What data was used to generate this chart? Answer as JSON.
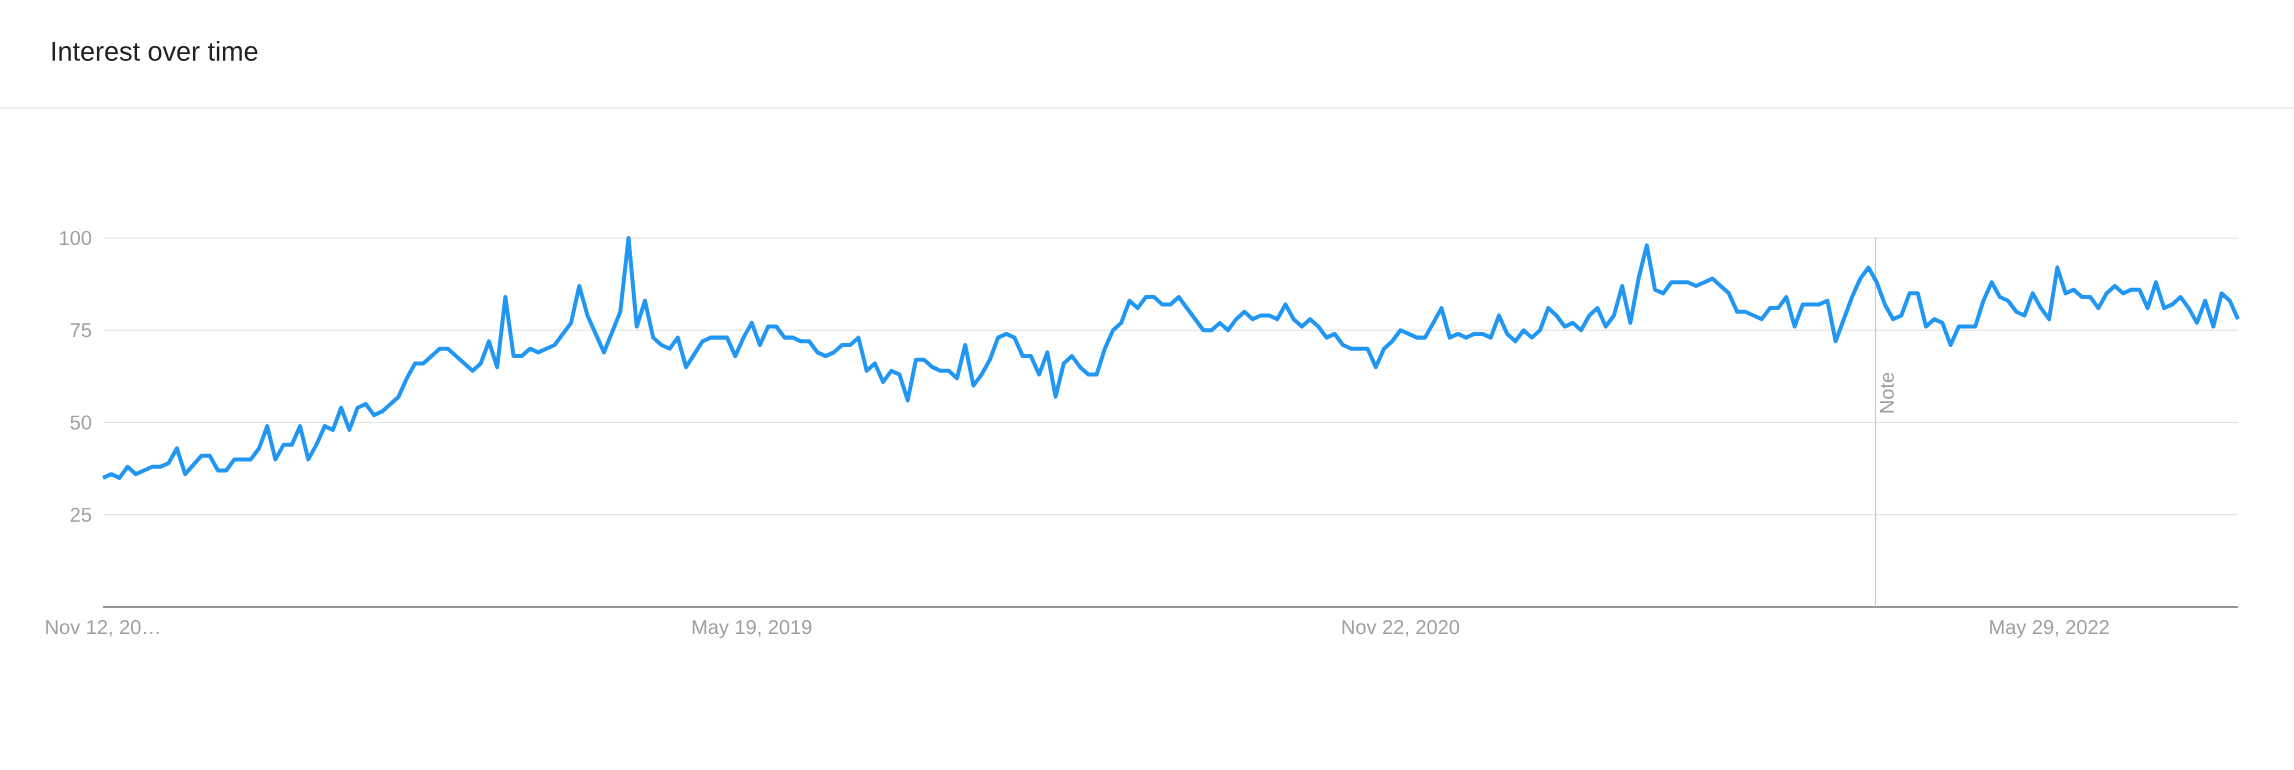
{
  "chart_data": {
    "type": "line",
    "title": "Interest over time",
    "x": [
      "2017-11-12",
      "2017-11-19",
      "2017-11-26",
      "2017-12-03",
      "2017-12-10",
      "2017-12-24",
      "2017-12-31",
      "2018-01-07",
      "2018-01-14",
      "2018-01-21",
      "2018-02-04",
      "2018-02-11",
      "2018-02-18",
      "2018-02-25",
      "2018-03-04",
      "2018-03-18",
      "2018-03-25",
      "2018-04-01",
      "2018-04-08",
      "2018-04-15",
      "2018-04-22",
      "2018-04-29",
      "2018-05-06",
      "2018-05-13",
      "2018-05-20",
      "2018-05-27",
      "2018-06-03",
      "2018-06-10",
      "2018-06-17",
      "2018-06-24",
      "2018-07-01",
      "2018-07-08",
      "2018-07-22",
      "2018-07-29",
      "2018-08-05",
      "2018-08-12",
      "2018-08-26",
      "2018-09-02",
      "2018-09-23",
      "2018-09-30",
      "2018-10-07",
      "2018-10-14",
      "2018-10-21",
      "2018-10-28",
      "2018-11-04",
      "2018-11-11",
      "2018-11-18",
      "2018-12-02",
      "2018-12-16",
      "2018-12-23",
      "2018-12-30",
      "2019-01-06",
      "2019-01-13",
      "2019-01-27",
      "2019-02-03",
      "2019-02-10",
      "2019-02-17",
      "2019-02-24",
      "2019-03-03",
      "2019-03-10",
      "2019-03-17",
      "2019-03-24",
      "2019-04-07",
      "2019-04-14",
      "2019-04-28",
      "2019-05-05",
      "2019-05-12",
      "2019-05-19",
      "2019-05-26",
      "2019-06-02",
      "2019-06-09",
      "2019-06-16",
      "2019-06-23",
      "2019-06-30",
      "2019-07-07",
      "2019-07-14",
      "2019-07-21",
      "2019-07-28",
      "2019-08-04",
      "2019-08-11",
      "2019-08-18",
      "2019-08-25",
      "2019-09-01",
      "2019-09-08",
      "2019-09-15",
      "2019-09-22",
      "2019-09-29",
      "2019-10-06",
      "2019-10-13",
      "2019-10-20",
      "2019-10-27",
      "2019-11-03",
      "2019-11-10",
      "2019-11-17",
      "2019-11-24",
      "2019-12-01",
      "2019-12-08",
      "2019-12-15",
      "2019-12-22",
      "2019-12-29",
      "2020-01-05",
      "2020-01-12",
      "2020-01-19",
      "2020-01-26",
      "2020-02-02",
      "2020-02-09",
      "2020-02-16",
      "2020-02-23",
      "2020-03-01",
      "2020-03-08",
      "2020-03-15",
      "2020-03-22",
      "2020-03-29",
      "2020-04-05",
      "2020-04-12",
      "2020-04-19",
      "2020-04-26",
      "2020-05-03",
      "2020-05-10",
      "2020-05-17",
      "2020-05-24",
      "2020-05-31",
      "2020-06-07",
      "2020-06-14",
      "2020-06-21",
      "2020-06-28",
      "2020-07-05",
      "2020-07-12",
      "2020-07-19",
      "2020-07-26",
      "2020-08-02",
      "2020-08-09",
      "2020-08-16",
      "2020-08-23",
      "2020-08-30",
      "2020-09-06",
      "2020-09-13",
      "2020-09-20",
      "2020-09-27",
      "2020-10-04",
      "2020-10-11",
      "2020-10-18",
      "2020-10-25",
      "2020-11-01",
      "2020-11-08",
      "2020-11-15",
      "2020-11-22",
      "2020-11-29",
      "2020-12-06",
      "2020-12-13",
      "2020-12-20",
      "2020-12-27",
      "2021-01-03",
      "2021-01-10",
      "2021-01-17",
      "2021-01-24",
      "2021-01-31",
      "2021-02-07",
      "2021-02-14",
      "2021-02-21",
      "2021-02-28",
      "2021-03-07",
      "2021-03-14",
      "2021-03-21",
      "2021-03-28",
      "2021-04-04",
      "2021-04-11",
      "2021-04-18",
      "2021-04-25",
      "2021-05-02",
      "2021-05-09",
      "2021-05-16",
      "2021-05-23",
      "2021-05-30",
      "2021-06-06",
      "2021-06-13",
      "2021-06-20",
      "2021-06-27",
      "2021-07-04",
      "2021-07-11",
      "2021-07-18",
      "2021-07-25",
      "2021-08-01",
      "2021-08-08",
      "2021-08-15",
      "2021-08-22",
      "2021-08-29",
      "2021-09-05",
      "2021-09-12",
      "2021-09-19",
      "2021-09-26",
      "2021-10-03",
      "2021-10-10",
      "2021-10-17",
      "2021-10-24",
      "2021-10-31",
      "2021-11-07",
      "2021-11-14",
      "2021-11-21",
      "2021-11-28",
      "2021-12-05",
      "2021-12-12",
      "2021-12-19",
      "2021-12-26",
      "2022-01-02",
      "2022-01-09",
      "2022-01-16",
      "2022-01-23",
      "2022-01-30",
      "2022-02-06",
      "2022-02-13",
      "2022-02-20",
      "2022-02-27",
      "2022-03-06",
      "2022-03-13",
      "2022-03-20",
      "2022-03-27",
      "2022-04-03",
      "2022-04-10",
      "2022-04-17",
      "2022-04-24",
      "2022-05-01",
      "2022-05-08",
      "2022-05-15",
      "2022-05-22",
      "2022-05-29",
      "2022-06-05",
      "2022-06-12",
      "2022-06-19",
      "2022-06-26",
      "2022-07-03",
      "2022-07-10",
      "2022-07-17",
      "2022-07-24",
      "2022-07-31",
      "2022-08-07",
      "2022-08-14",
      "2022-08-21",
      "2022-08-28",
      "2022-09-04",
      "2022-09-11",
      "2022-09-18",
      "2022-09-25",
      "2022-10-02",
      "2022-10-09",
      "2022-10-16",
      "2022-10-23",
      "2022-10-30",
      "2022-11-06"
    ],
    "values": [
      35,
      36,
      35,
      38,
      36,
      38,
      38,
      39,
      43,
      36,
      41,
      41,
      37,
      37,
      40,
      40,
      43,
      49,
      40,
      44,
      44,
      49,
      40,
      44,
      49,
      48,
      54,
      48,
      54,
      55,
      52,
      53,
      57,
      62,
      66,
      66,
      70,
      70,
      64,
      66,
      72,
      65,
      84,
      68,
      68,
      70,
      69,
      71,
      77,
      87,
      79,
      74,
      69,
      80,
      100,
      76,
      83,
      73,
      71,
      70,
      73,
      65,
      72,
      73,
      73,
      68,
      73,
      77,
      71,
      76,
      76,
      73,
      73,
      72,
      72,
      69,
      68,
      69,
      71,
      71,
      73,
      64,
      66,
      61,
      64,
      63,
      56,
      67,
      67,
      65,
      64,
      64,
      62,
      71,
      60,
      63,
      67,
      73,
      74,
      73,
      68,
      68,
      63,
      69,
      57,
      66,
      68,
      65,
      63,
      63,
      70,
      75,
      77,
      83,
      81,
      84,
      84,
      82,
      82,
      84,
      81,
      78,
      75,
      75,
      77,
      75,
      78,
      80,
      78,
      79,
      79,
      78,
      82,
      78,
      76,
      78,
      76,
      73,
      74,
      71,
      70,
      70,
      70,
      65,
      70,
      72,
      75,
      74,
      73,
      73,
      77,
      81,
      73,
      74,
      73,
      74,
      74,
      73,
      79,
      74,
      72,
      75,
      73,
      75,
      81,
      79,
      76,
      77,
      75,
      79,
      81,
      76,
      79,
      87,
      77,
      89,
      98,
      86,
      85,
      88,
      88,
      88,
      87,
      88,
      89,
      87,
      85,
      80,
      80,
      79,
      78,
      81,
      81,
      84,
      76,
      82,
      82,
      82,
      83,
      72,
      78,
      84,
      89,
      92,
      88,
      82,
      78,
      79,
      85,
      85,
      76,
      78,
      77,
      71,
      76,
      76,
      76,
      83,
      88,
      84,
      83,
      80,
      79,
      85,
      81,
      78,
      92,
      85,
      86,
      84,
      84,
      81,
      85,
      87,
      85,
      86,
      86,
      81,
      88,
      81,
      82,
      84,
      81,
      77,
      83,
      76,
      85,
      83,
      78
    ],
    "color": "#2196f3",
    "xlim": [
      "2017-11-12",
      "2022-11-06"
    ],
    "xticks": [
      {
        "value": "2017-11-12",
        "label": "Nov 12, 20…"
      },
      {
        "value": "2019-05-19",
        "label": "May 19, 2019"
      },
      {
        "value": "2020-11-22",
        "label": "Nov 22, 2020"
      },
      {
        "value": "2022-05-29",
        "label": "May 29, 2022"
      }
    ],
    "ylim": [
      0,
      100
    ],
    "yticks": [
      25,
      50,
      75,
      100
    ],
    "grid": "y",
    "ref_lines": [
      {
        "axis": "x",
        "value": "2022-01-01",
        "label": "Note",
        "color": "#c8c8c8"
      }
    ]
  }
}
